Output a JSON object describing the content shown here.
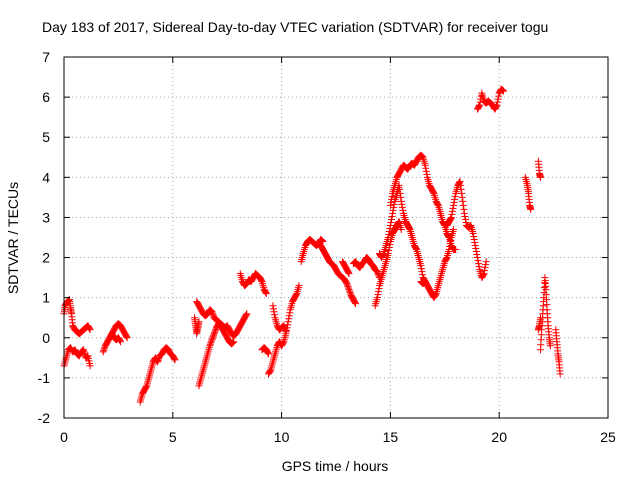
{
  "chart_data": {
    "type": "scatter",
    "title": "Day 183 of 2017, Sidereal Day-to-day VTEC variation (SDTVAR) for receiver togu",
    "xlabel": "GPS time / hours",
    "ylabel": "SDTVAR / TECUs",
    "xlim": [
      0,
      25
    ],
    "ylim": [
      -2,
      7
    ],
    "xticks": [
      0,
      5,
      10,
      15,
      20,
      25
    ],
    "yticks": [
      -2,
      -1,
      0,
      1,
      2,
      3,
      4,
      5,
      6,
      7
    ],
    "grid": true,
    "marker": "+",
    "color": "#ff0000",
    "segments": [
      [
        [
          0.0,
          -0.7
        ],
        [
          0.1,
          -0.5
        ],
        [
          0.2,
          -0.3
        ],
        [
          0.3,
          -0.25
        ],
        [
          0.4,
          -0.35
        ],
        [
          0.5,
          -0.3
        ],
        [
          0.6,
          -0.4
        ],
        [
          0.7,
          -0.45
        ],
        [
          0.8,
          -0.35
        ],
        [
          0.9,
          -0.3
        ],
        [
          1.0,
          -0.5
        ],
        [
          1.1,
          -0.45
        ],
        [
          1.2,
          -0.7
        ]
      ],
      [
        [
          0.0,
          0.6
        ],
        [
          0.05,
          0.8
        ],
        [
          0.15,
          0.9
        ],
        [
          0.25,
          0.95
        ],
        [
          0.3,
          0.75
        ],
        [
          0.35,
          0.6
        ],
        [
          0.4,
          0.3
        ],
        [
          0.5,
          0.2
        ],
        [
          0.6,
          0.15
        ],
        [
          0.7,
          0.1
        ],
        [
          0.8,
          0.15
        ],
        [
          0.9,
          0.2
        ],
        [
          1.0,
          0.25
        ],
        [
          1.1,
          0.3
        ],
        [
          1.2,
          0.2
        ]
      ],
      [
        [
          1.8,
          -0.35
        ],
        [
          1.9,
          -0.2
        ],
        [
          2.0,
          -0.1
        ],
        [
          2.1,
          0.0
        ],
        [
          2.2,
          0.1
        ],
        [
          2.3,
          0.2
        ],
        [
          2.4,
          0.3
        ],
        [
          2.5,
          0.35
        ],
        [
          2.6,
          0.3
        ],
        [
          2.7,
          0.2
        ],
        [
          2.8,
          0.1
        ],
        [
          2.9,
          0.0
        ]
      ],
      [
        [
          2.2,
          0.1
        ],
        [
          2.3,
          0.0
        ],
        [
          2.4,
          -0.05
        ],
        [
          2.5,
          0.0
        ],
        [
          2.6,
          -0.1
        ]
      ],
      [
        [
          3.5,
          -1.6
        ],
        [
          3.6,
          -1.4
        ],
        [
          3.7,
          -1.3
        ],
        [
          3.8,
          -1.2
        ],
        [
          3.9,
          -1.0
        ],
        [
          4.0,
          -0.8
        ],
        [
          4.1,
          -0.6
        ],
        [
          4.2,
          -0.5
        ],
        [
          4.3,
          -0.6
        ],
        [
          4.4,
          -0.45
        ],
        [
          4.5,
          -0.4
        ],
        [
          4.6,
          -0.3
        ],
        [
          4.7,
          -0.25
        ],
        [
          4.8,
          -0.3
        ],
        [
          4.9,
          -0.4
        ],
        [
          5.0,
          -0.45
        ],
        [
          5.1,
          -0.55
        ]
      ],
      [
        [
          6.1,
          0.9
        ],
        [
          6.2,
          0.8
        ],
        [
          6.3,
          0.7
        ],
        [
          6.4,
          0.6
        ],
        [
          6.5,
          0.55
        ],
        [
          6.6,
          0.6
        ],
        [
          6.7,
          0.7
        ],
        [
          6.8,
          0.65
        ],
        [
          6.9,
          0.5
        ],
        [
          7.0,
          0.45
        ],
        [
          7.1,
          0.4
        ],
        [
          7.2,
          0.35
        ],
        [
          7.3,
          0.3
        ],
        [
          7.4,
          0.25
        ],
        [
          7.5,
          0.3
        ],
        [
          7.6,
          0.2
        ],
        [
          7.7,
          0.1
        ],
        [
          7.8,
          0.05
        ],
        [
          7.9,
          0.1
        ],
        [
          8.0,
          0.2
        ],
        [
          8.1,
          0.3
        ],
        [
          8.2,
          0.4
        ],
        [
          8.3,
          0.5
        ],
        [
          8.4,
          0.6
        ]
      ],
      [
        [
          6.2,
          -1.2
        ],
        [
          6.3,
          -1.0
        ],
        [
          6.4,
          -0.8
        ],
        [
          6.5,
          -0.6
        ],
        [
          6.6,
          -0.4
        ],
        [
          6.7,
          -0.2
        ],
        [
          6.8,
          -0.05
        ],
        [
          6.9,
          0.1
        ],
        [
          7.0,
          0.25
        ],
        [
          7.1,
          0.35
        ],
        [
          7.2,
          0.3
        ],
        [
          7.3,
          0.2
        ],
        [
          7.4,
          0.1
        ],
        [
          7.5,
          0.0
        ],
        [
          7.6,
          -0.1
        ],
        [
          7.7,
          -0.15
        ],
        [
          7.8,
          -0.1
        ]
      ],
      [
        [
          6.0,
          0.5
        ],
        [
          6.05,
          0.3
        ],
        [
          6.1,
          0.1
        ],
        [
          6.15,
          0.25
        ],
        [
          6.2,
          0.4
        ]
      ],
      [
        [
          8.1,
          1.6
        ],
        [
          8.2,
          1.4
        ],
        [
          8.3,
          1.3
        ],
        [
          8.4,
          1.35
        ],
        [
          8.5,
          1.45
        ],
        [
          8.6,
          1.4
        ],
        [
          8.7,
          1.5
        ],
        [
          8.8,
          1.6
        ],
        [
          8.9,
          1.55
        ],
        [
          9.0,
          1.5
        ],
        [
          9.1,
          1.4
        ],
        [
          9.2,
          1.2
        ],
        [
          9.3,
          1.1
        ]
      ],
      [
        [
          9.1,
          -0.3
        ],
        [
          9.2,
          -0.25
        ],
        [
          9.3,
          -0.3
        ],
        [
          9.4,
          -0.4
        ]
      ],
      [
        [
          9.4,
          -0.9
        ],
        [
          9.5,
          -0.8
        ],
        [
          9.6,
          -0.6
        ],
        [
          9.7,
          -0.4
        ],
        [
          9.8,
          -0.2
        ],
        [
          9.9,
          -0.1
        ],
        [
          10.0,
          -0.2
        ],
        [
          10.1,
          -0.1
        ],
        [
          10.2,
          0.1
        ],
        [
          10.3,
          0.4
        ],
        [
          10.4,
          0.7
        ],
        [
          10.5,
          0.9
        ],
        [
          10.6,
          1.0
        ],
        [
          10.7,
          1.1
        ],
        [
          10.8,
          1.3
        ]
      ],
      [
        [
          9.6,
          0.8
        ],
        [
          9.7,
          0.5
        ],
        [
          9.8,
          0.3
        ],
        [
          9.9,
          0.2
        ],
        [
          10.0,
          0.25
        ],
        [
          10.1,
          0.3
        ],
        [
          10.2,
          0.15
        ]
      ],
      [
        [
          10.9,
          1.9
        ],
        [
          11.0,
          2.1
        ],
        [
          11.1,
          2.3
        ],
        [
          11.2,
          2.4
        ],
        [
          11.3,
          2.45
        ],
        [
          11.4,
          2.4
        ],
        [
          11.5,
          2.35
        ],
        [
          11.6,
          2.3
        ],
        [
          11.7,
          2.35
        ],
        [
          11.8,
          2.45
        ],
        [
          11.9,
          2.4
        ]
      ],
      [
        [
          11.8,
          2.3
        ],
        [
          11.9,
          2.2
        ],
        [
          12.0,
          2.1
        ],
        [
          12.1,
          2.0
        ],
        [
          12.2,
          1.9
        ],
        [
          12.3,
          1.85
        ],
        [
          12.4,
          1.8
        ],
        [
          12.5,
          1.7
        ],
        [
          12.6,
          1.6
        ],
        [
          12.7,
          1.55
        ],
        [
          12.8,
          1.5
        ],
        [
          12.9,
          1.45
        ],
        [
          13.0,
          1.35
        ],
        [
          13.1,
          1.2
        ],
        [
          13.2,
          1.05
        ],
        [
          13.3,
          0.95
        ],
        [
          13.4,
          0.85
        ]
      ],
      [
        [
          12.8,
          1.9
        ],
        [
          12.9,
          1.8
        ],
        [
          13.0,
          1.7
        ],
        [
          13.1,
          1.6
        ]
      ],
      [
        [
          13.3,
          1.85
        ],
        [
          13.4,
          1.9
        ],
        [
          13.5,
          1.8
        ],
        [
          13.6,
          1.75
        ],
        [
          13.7,
          1.85
        ],
        [
          13.8,
          1.9
        ],
        [
          13.9,
          2.0
        ],
        [
          14.0,
          1.95
        ],
        [
          14.1,
          1.85
        ],
        [
          14.2,
          1.8
        ],
        [
          14.3,
          1.7
        ],
        [
          14.4,
          1.65
        ],
        [
          14.5,
          1.5
        ]
      ],
      [
        [
          14.3,
          0.8
        ],
        [
          14.4,
          1.0
        ],
        [
          14.5,
          1.3
        ],
        [
          14.6,
          1.5
        ],
        [
          14.7,
          1.7
        ],
        [
          14.8,
          1.9
        ],
        [
          14.9,
          2.1
        ],
        [
          15.0,
          2.4
        ],
        [
          15.1,
          2.6
        ],
        [
          15.2,
          2.7
        ],
        [
          15.3,
          2.8
        ],
        [
          15.4,
          2.9
        ],
        [
          15.5,
          2.7
        ]
      ],
      [
        [
          14.5,
          2.1
        ],
        [
          14.6,
          2.0
        ],
        [
          14.7,
          2.1
        ],
        [
          14.8,
          2.3
        ],
        [
          14.9,
          2.5
        ],
        [
          15.0,
          2.8
        ],
        [
          15.1,
          3.1
        ],
        [
          15.2,
          3.4
        ],
        [
          15.3,
          3.6
        ],
        [
          15.4,
          3.8
        ],
        [
          15.5,
          3.4
        ],
        [
          15.6,
          3.1
        ],
        [
          15.7,
          2.9
        ],
        [
          15.8,
          2.8
        ],
        [
          15.9,
          2.7
        ],
        [
          16.0,
          2.5
        ],
        [
          16.1,
          2.3
        ],
        [
          16.2,
          2.2
        ],
        [
          16.3,
          2.0
        ],
        [
          16.4,
          1.8
        ],
        [
          16.5,
          1.5
        ],
        [
          16.6,
          1.4
        ]
      ],
      [
        [
          15.0,
          3.3
        ],
        [
          15.1,
          3.6
        ],
        [
          15.2,
          3.8
        ],
        [
          15.3,
          4.0
        ],
        [
          15.4,
          4.1
        ],
        [
          15.5,
          4.2
        ],
        [
          15.6,
          4.3
        ],
        [
          15.7,
          4.25
        ],
        [
          15.8,
          4.2
        ],
        [
          15.9,
          4.3
        ],
        [
          16.0,
          4.35
        ],
        [
          16.1,
          4.3
        ],
        [
          16.2,
          4.4
        ],
        [
          16.3,
          4.5
        ],
        [
          16.4,
          4.55
        ],
        [
          16.5,
          4.5
        ],
        [
          16.6,
          4.3
        ],
        [
          16.7,
          4.0
        ],
        [
          16.8,
          3.8
        ],
        [
          16.9,
          3.7
        ],
        [
          17.0,
          3.6
        ],
        [
          17.1,
          3.4
        ],
        [
          17.2,
          3.3
        ],
        [
          17.3,
          3.1
        ],
        [
          17.4,
          2.9
        ],
        [
          17.5,
          2.8
        ],
        [
          17.6,
          2.6
        ],
        [
          17.7,
          2.5
        ],
        [
          17.8,
          2.3
        ],
        [
          17.9,
          2.2
        ],
        [
          18.0,
          2.2
        ]
      ],
      [
        [
          16.4,
          1.4
        ],
        [
          16.5,
          1.35
        ],
        [
          16.6,
          1.4
        ],
        [
          16.7,
          1.3
        ],
        [
          16.8,
          1.2
        ],
        [
          16.9,
          1.1
        ],
        [
          17.0,
          1.0
        ],
        [
          17.1,
          1.1
        ],
        [
          17.2,
          1.3
        ],
        [
          17.3,
          1.5
        ],
        [
          17.4,
          1.7
        ],
        [
          17.5,
          1.9
        ],
        [
          17.6,
          2.0
        ],
        [
          17.7,
          2.2
        ],
        [
          17.8,
          2.5
        ],
        [
          17.9,
          2.7
        ]
      ],
      [
        [
          17.6,
          2.8
        ],
        [
          17.7,
          2.9
        ],
        [
          17.8,
          3.0
        ],
        [
          17.9,
          3.3
        ],
        [
          18.0,
          3.6
        ],
        [
          18.1,
          3.8
        ],
        [
          18.2,
          3.9
        ],
        [
          18.3,
          3.5
        ],
        [
          18.4,
          3.1
        ],
        [
          18.5,
          2.8
        ],
        [
          18.6,
          2.75
        ],
        [
          18.7,
          2.8
        ],
        [
          18.8,
          2.6
        ],
        [
          18.9,
          2.3
        ],
        [
          19.0,
          2.0
        ],
        [
          19.1,
          1.7
        ],
        [
          19.2,
          1.5
        ],
        [
          19.3,
          1.6
        ],
        [
          19.4,
          1.9
        ]
      ],
      [
        [
          19.0,
          5.7
        ],
        [
          19.1,
          5.8
        ],
        [
          19.2,
          6.1
        ],
        [
          19.3,
          5.9
        ],
        [
          19.4,
          5.85
        ],
        [
          19.5,
          5.9
        ],
        [
          19.6,
          5.85
        ],
        [
          19.7,
          5.8
        ],
        [
          19.8,
          5.7
        ],
        [
          19.9,
          5.8
        ],
        [
          20.0,
          6.1
        ],
        [
          20.1,
          6.2
        ],
        [
          20.2,
          6.15
        ]
      ],
      [
        [
          21.2,
          4.0
        ],
        [
          21.3,
          3.8
        ],
        [
          21.35,
          3.6
        ],
        [
          21.4,
          3.3
        ],
        [
          21.45,
          3.2
        ]
      ],
      [
        [
          21.8,
          4.4
        ],
        [
          21.85,
          4.1
        ],
        [
          21.9,
          4.0
        ]
      ],
      [
        [
          21.9,
          -0.3
        ],
        [
          21.95,
          0.2
        ],
        [
          22.0,
          0.6
        ],
        [
          22.05,
          1.0
        ],
        [
          22.1,
          1.5
        ],
        [
          22.15,
          1.2
        ],
        [
          22.2,
          0.7
        ],
        [
          22.25,
          0.3
        ],
        [
          22.3,
          0.0
        ],
        [
          22.35,
          -0.2
        ]
      ],
      [
        [
          21.8,
          0.2
        ],
        [
          21.85,
          0.3
        ],
        [
          21.9,
          0.5
        ]
      ],
      [
        [
          22.6,
          0.2
        ],
        [
          22.65,
          -0.1
        ],
        [
          22.7,
          -0.4
        ],
        [
          22.75,
          -0.6
        ],
        [
          22.8,
          -0.9
        ]
      ]
    ]
  }
}
